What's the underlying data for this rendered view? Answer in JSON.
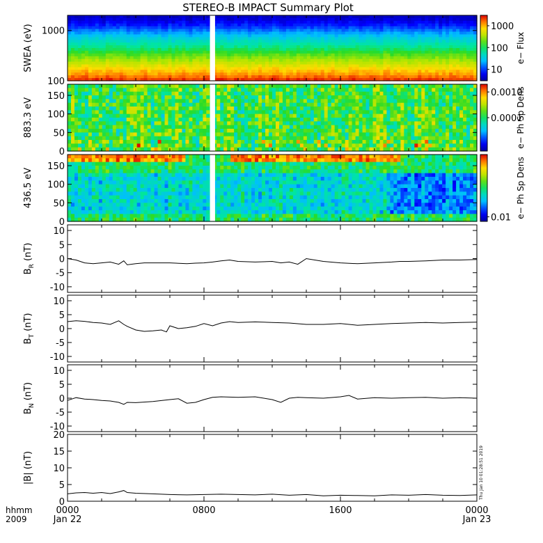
{
  "title": "STEREO-B IMPACT Summary Plot",
  "timestamp_label": "Thu Jan 10 01:28:51 2019",
  "x_axis": {
    "row_label_1": "hhmm",
    "row_label_2": "2009",
    "ticks": [
      {
        "time": "0000",
        "date": "Jan 22",
        "hours": 0
      },
      {
        "time": "0800",
        "date": "",
        "hours": 8
      },
      {
        "time": "1600",
        "date": "",
        "hours": 16
      },
      {
        "time": "0000",
        "date": "Jan 23",
        "hours": 24
      }
    ],
    "range_hours": [
      0,
      24
    ]
  },
  "chart_data": [
    {
      "type": "heatmap",
      "panel": "swea",
      "ylabel": "SWEA (eV)",
      "y_scale": "log",
      "ylim": [
        100,
        2000
      ],
      "yticks": [
        100,
        1000
      ],
      "yticklabels": [
        "100",
        "1000"
      ],
      "colorbar": {
        "label": "e− Flux",
        "scale": "log",
        "ticks": [
          10,
          100,
          1000
        ],
        "ticklabels": [
          "10",
          "100",
          "1000"
        ],
        "range": [
          3,
          3000
        ]
      },
      "data_gap_hours": [
        8.35,
        8.65
      ],
      "profile": [
        {
          "energy": 100,
          "level": 0.97
        },
        {
          "energy": 130,
          "level": 0.88
        },
        {
          "energy": 170,
          "level": 0.8
        },
        {
          "energy": 230,
          "level": 0.7
        },
        {
          "energy": 320,
          "level": 0.6
        },
        {
          "energy": 450,
          "level": 0.48
        },
        {
          "energy": 650,
          "level": 0.38
        },
        {
          "energy": 900,
          "level": 0.27
        },
        {
          "energy": 1200,
          "level": 0.16
        },
        {
          "energy": 1600,
          "level": 0.08
        },
        {
          "energy": 2000,
          "level": 0.03
        }
      ]
    },
    {
      "type": "heatmap",
      "panel": "pad883",
      "ylabel": "883.3 eV",
      "ylim": [
        0,
        180
      ],
      "yticks": [
        0,
        50,
        100,
        150
      ],
      "colorbar": {
        "label": "e− Ph Sp Dens",
        "scale": "log",
        "ticks": [
          0.0001,
          0.001
        ],
        "ticklabels": [
          "0.0001",
          "0.0010"
        ],
        "range": [
          5e-06,
          0.002
        ]
      },
      "data_gap_hours": [
        8.35,
        8.65
      ],
      "base_level": 0.55
    },
    {
      "type": "heatmap",
      "panel": "pad436",
      "ylabel": "436.5 eV",
      "ylim": [
        0,
        180
      ],
      "yticks": [
        0,
        50,
        100,
        150
      ],
      "colorbar": {
        "label": "e− Ph Sp Dens",
        "scale": "log",
        "ticks": [
          0.01
        ],
        "ticklabels": [
          "0.01"
        ],
        "range": [
          0.008,
          0.2
        ]
      },
      "data_gap_hours": [
        8.35,
        8.65
      ],
      "base_level": 0.5
    },
    {
      "type": "line",
      "panel": "br",
      "ylabel": "B",
      "ylabel_sub": "R",
      "ylabel_unit": "(nT)",
      "ylim": [
        -12,
        12
      ],
      "yticks": [
        -10,
        -5,
        0,
        5,
        10
      ],
      "x": [
        0,
        0.5,
        1,
        1.5,
        2,
        2.5,
        3,
        3.3,
        3.5,
        4,
        4.5,
        5,
        6,
        7,
        7.5,
        8,
        8.5,
        9,
        9.5,
        10,
        11,
        12,
        12.5,
        13,
        13.5,
        14,
        15,
        16,
        17,
        18,
        19,
        19.5,
        20,
        21,
        22,
        23,
        24
      ],
      "y": [
        0,
        -0.5,
        -1.5,
        -1.8,
        -1.5,
        -1.2,
        -2.0,
        -0.8,
        -2.2,
        -1.8,
        -1.5,
        -1.5,
        -1.5,
        -1.8,
        -1.6,
        -1.5,
        -1.2,
        -0.8,
        -0.5,
        -1.0,
        -1.2,
        -1.0,
        -1.5,
        -1.2,
        -2.0,
        0.0,
        -1.0,
        -1.5,
        -1.8,
        -1.5,
        -1.2,
        -1.0,
        -1.0,
        -0.8,
        -0.5,
        -0.5,
        -0.3
      ]
    },
    {
      "type": "line",
      "panel": "bt",
      "ylabel": "B",
      "ylabel_sub": "T",
      "ylabel_unit": "(nT)",
      "ylim": [
        -12,
        12
      ],
      "yticks": [
        -10,
        -5,
        0,
        5,
        10
      ],
      "x": [
        0,
        0.5,
        1,
        1.5,
        2,
        2.5,
        3,
        3.3,
        3.5,
        4,
        4.5,
        5,
        5.5,
        5.8,
        6,
        6.5,
        7,
        7.5,
        8,
        8.5,
        9,
        9.5,
        10,
        11,
        12,
        13,
        14,
        15,
        16,
        17,
        18,
        19,
        20,
        21,
        22,
        23,
        24
      ],
      "y": [
        2.5,
        2.8,
        2.6,
        2.2,
        2.0,
        1.5,
        2.8,
        1.5,
        0.8,
        -0.5,
        -1.0,
        -0.8,
        -0.5,
        -1.2,
        1.0,
        0.0,
        0.3,
        0.8,
        1.8,
        1.0,
        2.0,
        2.5,
        2.2,
        2.4,
        2.2,
        2.0,
        1.5,
        1.5,
        1.8,
        1.2,
        1.5,
        1.8,
        2.0,
        2.2,
        2.0,
        2.2,
        2.3
      ]
    },
    {
      "type": "line",
      "panel": "bn",
      "ylabel": "B",
      "ylabel_sub": "N",
      "ylabel_unit": "(nT)",
      "ylim": [
        -12,
        12
      ],
      "yticks": [
        -10,
        -5,
        0,
        5,
        10
      ],
      "x": [
        0,
        0.5,
        1,
        1.5,
        2,
        2.5,
        3,
        3.3,
        3.5,
        4,
        5,
        6,
        6.5,
        7,
        7.5,
        8,
        8.5,
        9,
        10,
        11,
        12,
        12.5,
        13,
        13.5,
        14,
        15,
        16,
        16.5,
        17,
        18,
        19,
        20,
        21,
        22,
        23,
        24
      ],
      "y": [
        -0.8,
        0.2,
        -0.3,
        -0.5,
        -0.8,
        -1.0,
        -1.5,
        -2.2,
        -1.5,
        -1.6,
        -1.2,
        -0.5,
        -0.2,
        -1.8,
        -1.5,
        -0.5,
        0.3,
        0.5,
        0.3,
        0.5,
        -0.5,
        -1.5,
        0.0,
        0.3,
        0.2,
        0.0,
        0.5,
        1.0,
        -0.3,
        0.2,
        0.0,
        0.2,
        0.3,
        0.0,
        0.2,
        0.0
      ]
    },
    {
      "type": "line",
      "panel": "bmag",
      "ylabel": "|B| (nT)",
      "ylim": [
        0,
        20
      ],
      "yticks": [
        0,
        5,
        10,
        15,
        20
      ],
      "x": [
        0,
        0.5,
        1,
        1.5,
        2,
        2.5,
        3,
        3.3,
        3.5,
        4,
        5,
        6,
        7,
        8,
        9,
        10,
        11,
        12,
        13,
        14,
        15,
        16,
        17,
        18,
        19,
        20,
        21,
        22,
        23,
        24
      ],
      "y": [
        2.2,
        2.5,
        2.6,
        2.4,
        2.6,
        2.3,
        2.8,
        3.2,
        2.6,
        2.4,
        2.2,
        2.0,
        1.9,
        2.0,
        2.1,
        2.0,
        1.9,
        2.1,
        1.8,
        2.0,
        1.6,
        1.8,
        1.7,
        1.6,
        1.9,
        1.8,
        2.0,
        1.8,
        1.7,
        1.9
      ]
    }
  ]
}
